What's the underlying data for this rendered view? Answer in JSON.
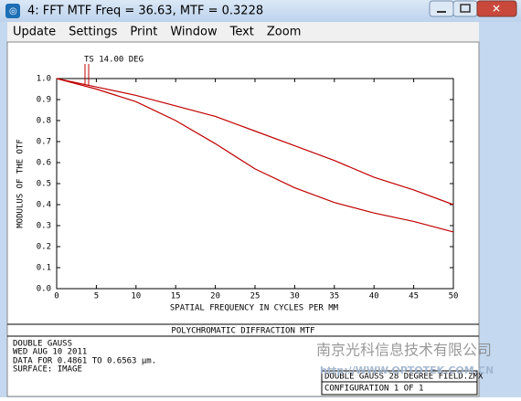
{
  "window": {
    "title": "4: FFT MTF Freq = 36.63, MTF = 0.3228"
  },
  "menu": [
    "Update",
    "Settings",
    "Print",
    "Window",
    "Text",
    "Zoom"
  ],
  "chart_data": {
    "type": "line",
    "legend": "TS 14.00 DEG",
    "x_label": "SPATIAL FREQUENCY IN CYCLES PER MM",
    "y_label": "MODULUS OF THE OTF",
    "x": [
      0,
      5,
      10,
      15,
      20,
      25,
      30,
      35,
      40,
      45,
      50
    ],
    "series": [
      {
        "color": "#c00000",
        "values": [
          1.0,
          0.96,
          0.92,
          0.87,
          0.82,
          0.75,
          0.68,
          0.61,
          0.53,
          0.47,
          0.4
        ]
      },
      {
        "color": "#c00000",
        "values": [
          1.0,
          0.95,
          0.89,
          0.8,
          0.69,
          0.57,
          0.48,
          0.41,
          0.36,
          0.32,
          0.27
        ]
      }
    ],
    "xlim": [
      0,
      50
    ],
    "xticks": [
      0,
      5,
      10,
      15,
      20,
      25,
      30,
      35,
      40,
      45,
      50
    ],
    "ylim": [
      0,
      1
    ],
    "yticks": [
      {
        "value": 0,
        "label": "0.0"
      },
      0.1,
      0.2,
      0.3,
      0.4,
      0.5,
      0.6,
      0.7,
      0.8,
      0.9,
      {
        "value": 1,
        "label": "1.0"
      }
    ]
  },
  "caption": "POLYCHROMATIC DIFFRACTION MTF",
  "info": [
    "DOUBLE GAUSS",
    "WED AUG 10 2011",
    "DATA FOR 0.4861 TO 0.6563 μm.",
    "SURFACE: IMAGE"
  ],
  "file_box": [
    "DOUBLE GAUSS 28 DEGREE FIELD.ZMX",
    "CONFIGURATION 1 OF 1"
  ],
  "watermark": [
    "南京光科信息技术有限公司",
    "http://WWW.OPTOTEK.COM.CN"
  ]
}
